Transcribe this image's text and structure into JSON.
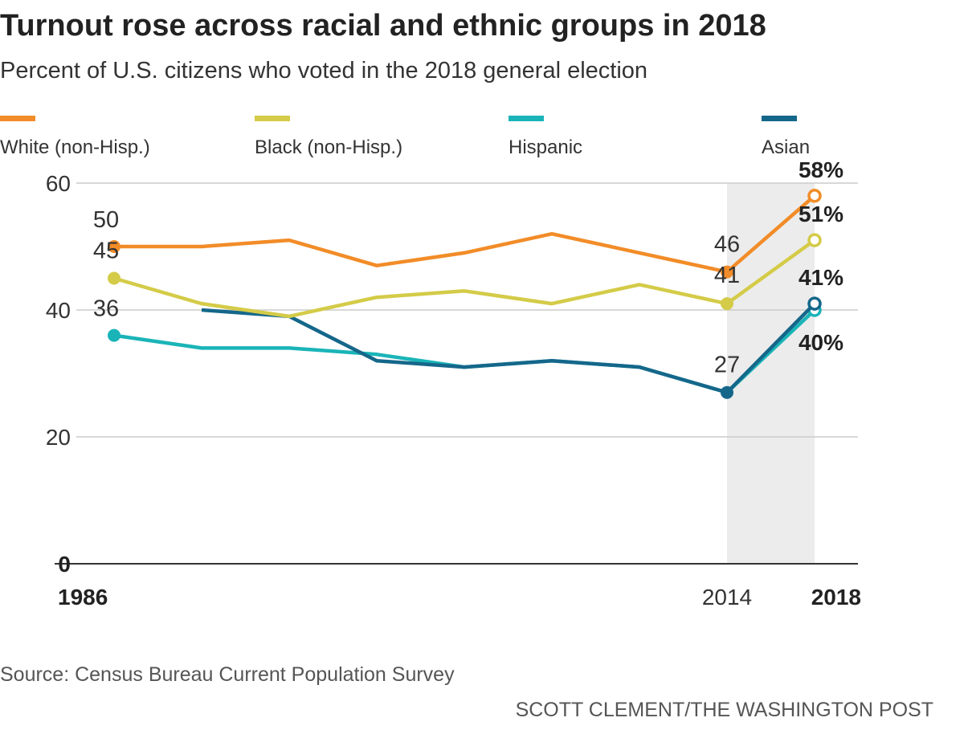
{
  "title": "Turnout rose across racial and ethnic groups in 2018",
  "subtitle": "Percent of U.S. citizens who voted in the 2018 general election",
  "source": "Source: Census Bureau Current Population Survey",
  "credit": "SCOTT CLEMENT/THE WASHINGTON POST",
  "chart_data": {
    "type": "line",
    "x": [
      1986,
      1990,
      1994,
      1998,
      2002,
      2006,
      2010,
      2014,
      2018
    ],
    "x_tick_labels": [
      "1986",
      "2014",
      "2018"
    ],
    "y_ticks": [
      "0",
      "20",
      "40",
      "60"
    ],
    "ylim": [
      0,
      60
    ],
    "grid": "horizontal",
    "legend": "top",
    "highlight_range": [
      2014,
      2018
    ],
    "series": [
      {
        "name": "White (non-Hisp.)",
        "color": "#f28c28",
        "values": [
          50,
          50,
          51,
          47,
          49,
          52,
          49,
          46,
          58
        ],
        "labels": {
          "1986": "50",
          "2014": "46",
          "2018": "58%"
        }
      },
      {
        "name": "Black (non-Hisp.)",
        "color": "#d4cb48",
        "values": [
          45,
          41,
          39,
          42,
          43,
          41,
          44,
          41,
          51
        ],
        "labels": {
          "1986": "45",
          "2014": "41",
          "2018": "51%"
        }
      },
      {
        "name": "Hispanic",
        "color": "#1ab4b8",
        "values": [
          36,
          34,
          34,
          33,
          31,
          32,
          31,
          27,
          40
        ],
        "labels": {
          "1986": "36",
          "2018": "40%"
        }
      },
      {
        "name": "Asian",
        "color": "#15678a",
        "values": [
          null,
          40,
          39,
          32,
          31,
          32,
          31,
          27,
          41
        ],
        "labels": {
          "2014": "27",
          "2018": "41%"
        }
      }
    ]
  }
}
